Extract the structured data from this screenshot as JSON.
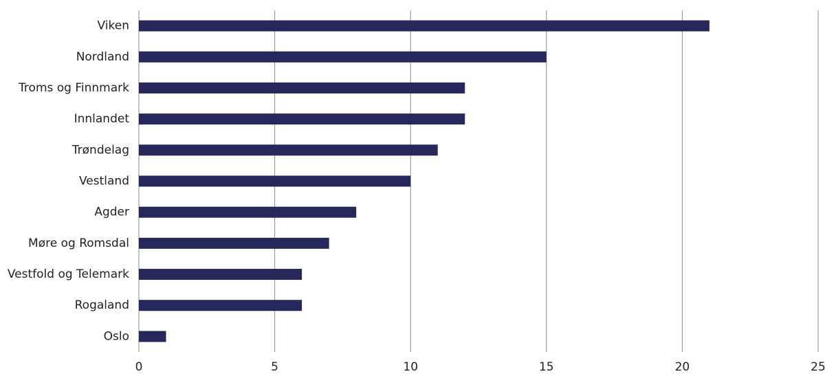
{
  "chart_data": {
    "type": "bar",
    "orientation": "horizontal",
    "categories": [
      "Viken",
      "Nordland",
      "Troms og Finnmark",
      "Innlandet",
      "Trøndelag",
      "Vestland",
      "Agder",
      "Møre og Romsdal",
      "Vestfold og Telemark",
      "Rogaland",
      "Oslo"
    ],
    "values": [
      21,
      15,
      12,
      12,
      11,
      10,
      8,
      7,
      6,
      6,
      1
    ],
    "color": "#26285c",
    "xlim": [
      0,
      25
    ],
    "xticks": [
      0,
      5,
      10,
      15,
      20,
      25
    ],
    "grid": true
  }
}
